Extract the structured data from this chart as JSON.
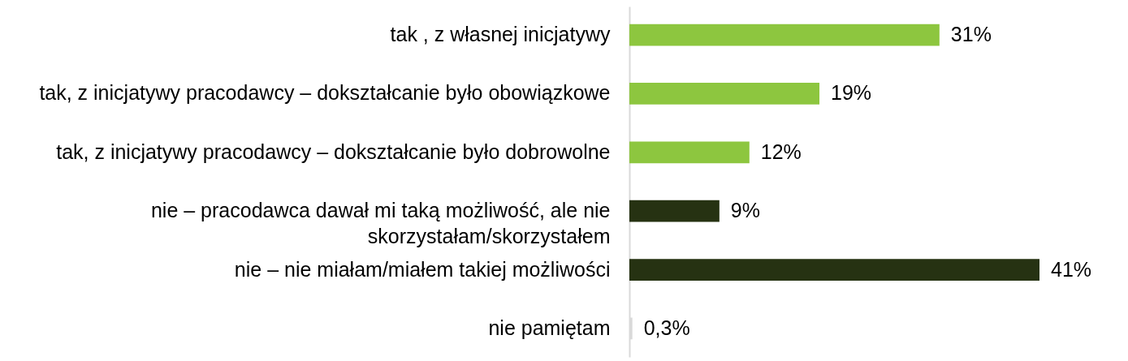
{
  "chart_data": {
    "type": "bar",
    "orientation": "horizontal",
    "categories": [
      "tak , z własnej inicjatywy",
      "tak, z inicjatywy pracodawcy  – dokształcanie było obowiązkowe",
      "tak, z inicjatywy pracodawcy  – dokształcanie było dobrowolne",
      "nie  – pracodawca dawał mi taką możliwość, ale nie skorzystałam/skorzystałem",
      "nie  – nie miałam/miałem takiej możliwości",
      "nie pamiętam"
    ],
    "values": [
      31,
      19,
      12,
      9,
      41,
      0.3
    ],
    "colors": [
      "#8dc63f",
      "#8dc63f",
      "#8dc63f",
      "#263212",
      "#263212",
      "#d9d9d9"
    ],
    "value_labels": [
      "31%",
      "19%",
      "12%",
      "9%",
      "41%",
      "0,3%"
    ]
  }
}
